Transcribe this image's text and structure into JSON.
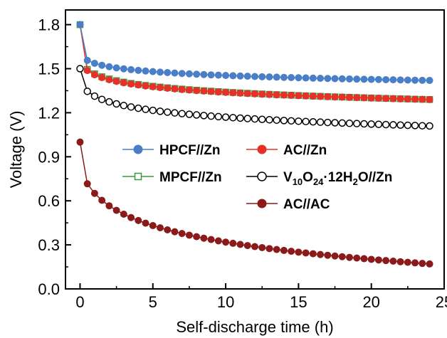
{
  "chart_data": {
    "type": "line",
    "xlabel": "Self-discharge time (h)",
    "ylabel": "Voltage (V)",
    "xlim": [
      -1,
      25
    ],
    "ylim": [
      0.0,
      1.9
    ],
    "x_ticks": [
      0,
      5,
      10,
      15,
      20,
      25
    ],
    "y_ticks": [
      0.0,
      0.3,
      0.6,
      0.9,
      1.2,
      1.5,
      1.8
    ],
    "x_tick_labels": [
      "0",
      "5",
      "10",
      "15",
      "20",
      "25"
    ],
    "y_tick_labels": [
      "0.0",
      "0.3",
      "0.6",
      "0.9",
      "1.2",
      "1.5",
      "1.8"
    ],
    "grid": false,
    "legend_position": "center",
    "series": [
      {
        "name": "HPCF//Zn",
        "color": "#4a7fc8",
        "marker": "filled-circle",
        "start": 1.8,
        "end": 1.42,
        "knee": 1.6,
        "curvature": 4.0
      },
      {
        "name": "AC//Zn",
        "color": "#e8302a",
        "marker": "filled-circle",
        "start": 1.8,
        "end": 1.29,
        "knee": 1.55,
        "curvature": 4.0
      },
      {
        "name": "MPCF//Zn",
        "color": "#3a9a3a",
        "marker": "open-square",
        "start": 1.8,
        "end": 1.29,
        "knee": 1.56,
        "curvature": 4.0
      },
      {
        "name_parts": [
          {
            "text": "V",
            "sub": false
          },
          {
            "text": "10",
            "sub": true
          },
          {
            "text": "O",
            "sub": false
          },
          {
            "text": "24",
            "sub": true
          },
          {
            "text": "·12H",
            "sub": false
          },
          {
            "text": "2",
            "sub": true
          },
          {
            "text": "O//Zn",
            "sub": false
          }
        ],
        "color": "#000000",
        "marker": "open-circle",
        "start": 1.5,
        "end": 1.11,
        "knee": 1.41,
        "curvature": 3.0
      },
      {
        "name": "AC//AC",
        "color": "#8b1a1a",
        "marker": "filled-circle",
        "start": 1.0,
        "end": 0.17,
        "knee": 0.82,
        "curvature": 1.6
      }
    ],
    "x_points": [
      0,
      0.5,
      1,
      1.5,
      2,
      2.5,
      3,
      3.5,
      4,
      4.5,
      5,
      5.5,
      6,
      6.5,
      7,
      7.5,
      8,
      8.5,
      9,
      9.5,
      10,
      10.5,
      11,
      11.5,
      12,
      12.5,
      13,
      13.5,
      14,
      14.5,
      15,
      15.5,
      16,
      16.5,
      17,
      17.5,
      18,
      18.5,
      19,
      19.5,
      20,
      20.5,
      21,
      21.5,
      22,
      22.5,
      23,
      23.5,
      24
    ]
  }
}
